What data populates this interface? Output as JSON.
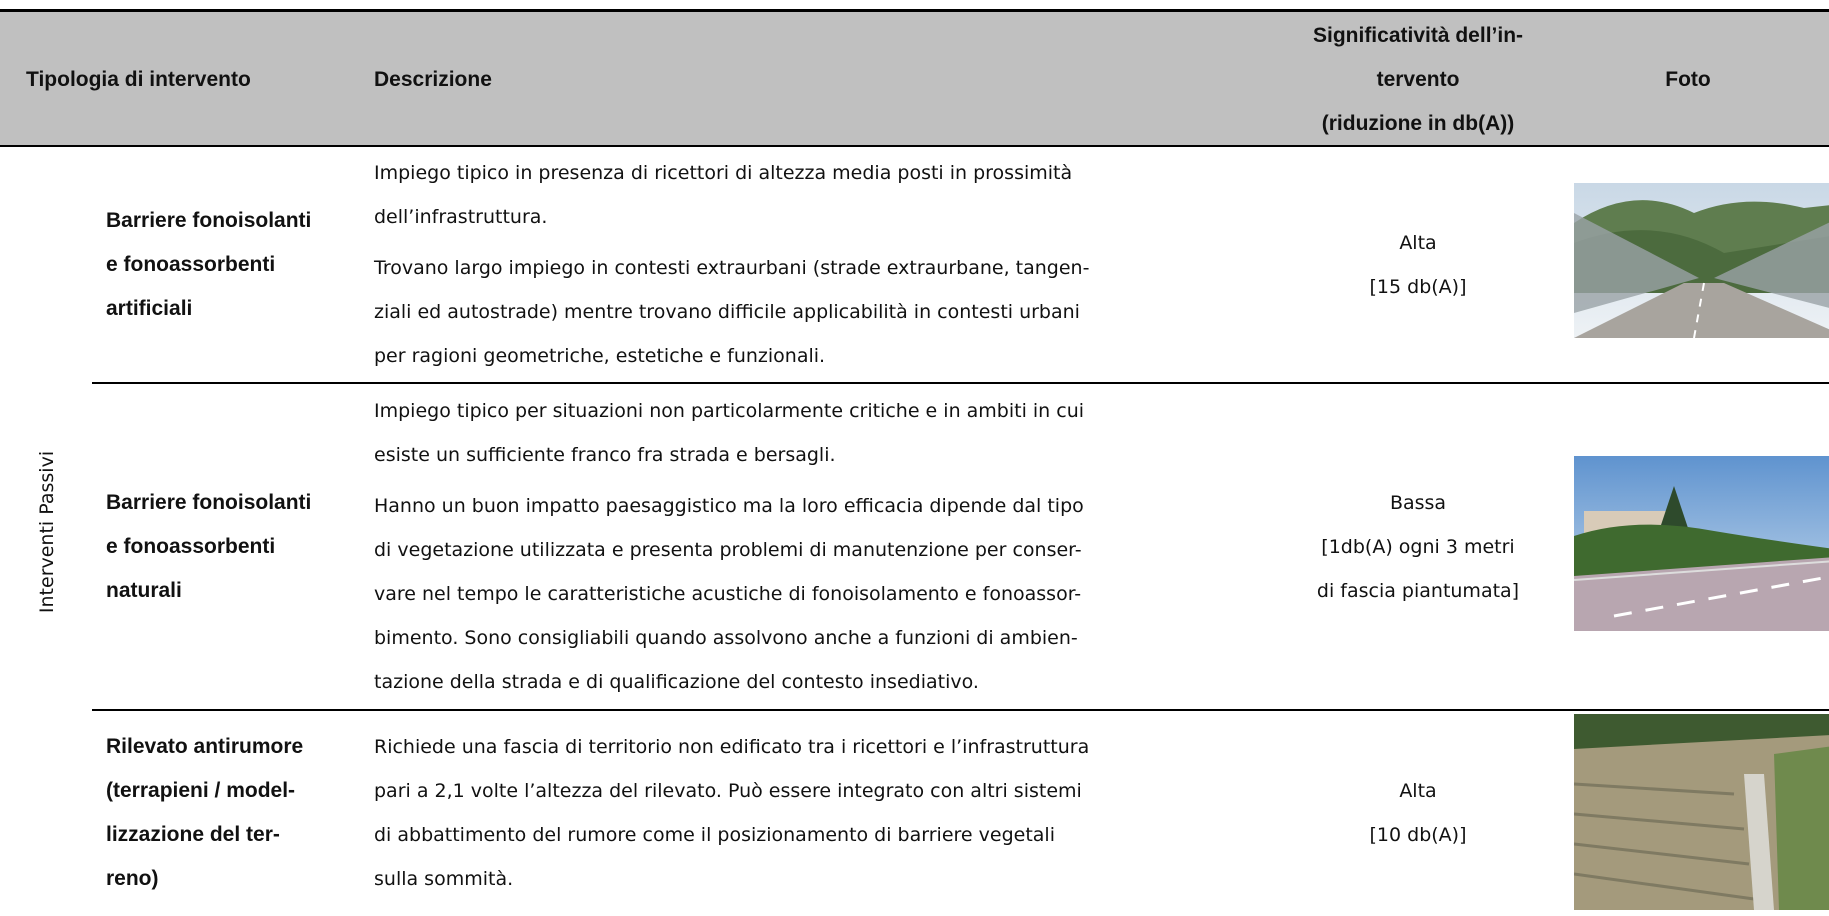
{
  "header": {
    "type": "Tipologia di intervento",
    "description": "Descrizione",
    "significance": [
      "Significatività dell’in-",
      "tervento",
      "(riduzione in db(A))"
    ],
    "photo": "Foto"
  },
  "group_label": "Interventi Passivi",
  "rows": [
    {
      "type": [
        "Barriere fonoisolanti",
        "e fonoassorbenti",
        "artificiali"
      ],
      "description": [
        [
          "Impiego tipico in presenza di ricettori di altezza media posti in prossimità",
          "dell’infrastruttura."
        ],
        [
          "Trovano largo impiego in contesti extraurbani (strade extraurbane, tangen-",
          "ziali ed autostrade) mentre trovano difficile applicabilità in contesti urbani",
          "per ragioni geometriche, estetiche e funzionali."
        ]
      ],
      "significance": [
        "Alta",
        "[15 db(A)]"
      ]
    },
    {
      "type": [
        "Barriere fonoisolanti",
        "e fonoassorbenti",
        "naturali"
      ],
      "description": [
        [
          "Impiego tipico per situazioni non particolarmente critiche e in ambiti in cui",
          "esiste un sufficiente franco fra strada e bersagli."
        ],
        [
          "Hanno un buon impatto paesaggistico ma la loro efficacia dipende dal tipo",
          "di vegetazione utilizzata e presenta problemi di manutenzione per conser-",
          "vare nel tempo le caratteristiche acustiche di fonoisolamento e fonoassor-",
          "bimento. Sono consigliabili quando assolvono anche a funzioni di ambien-",
          "tazione della strada e di qualificazione del contesto insediativo."
        ]
      ],
      "significance": [
        "Bassa",
        "[1db(A) ogni 3 metri",
        "di fascia piantumata]"
      ]
    },
    {
      "type": [
        "Rilevato antirumore",
        "(terrapieni / model-",
        "lizzazione del ter-",
        "reno)"
      ],
      "description": [
        [
          "Richiede una fascia di territorio non edificato tra i ricettori e l’infrastruttura",
          "pari a 2,1 volte l’altezza del rilevato. Può essere integrato con altri sistemi",
          "di abbattimento del rumore come il posizionamento di barriere vegetali",
          "sulla sommità."
        ]
      ],
      "significance": [
        "Alta",
        "[10 db(A)]"
      ]
    }
  ]
}
